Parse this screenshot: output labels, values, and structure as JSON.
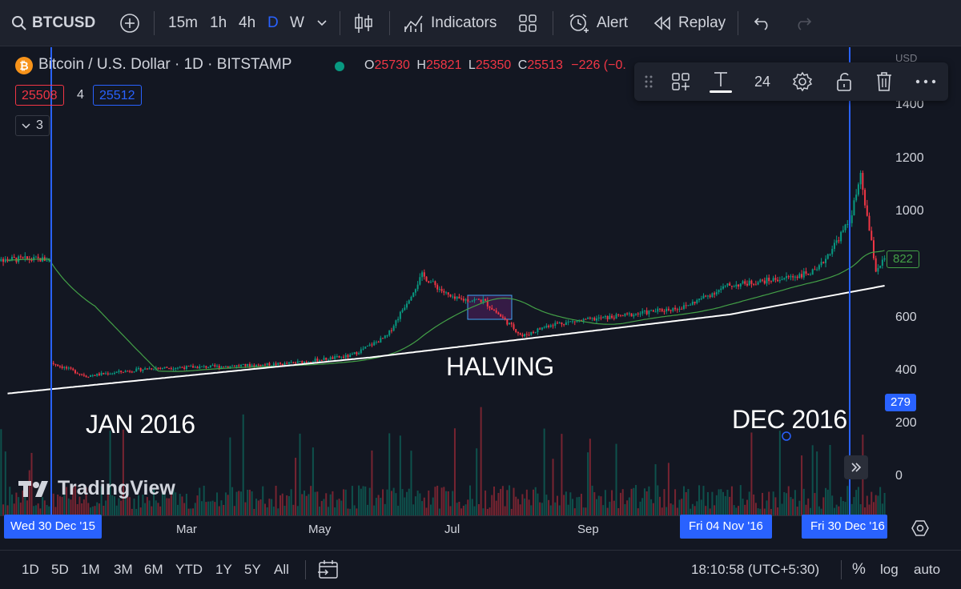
{
  "toolbar": {
    "symbol": "BTCUSD",
    "intervals": [
      "15m",
      "1h",
      "4h",
      "D",
      "W"
    ],
    "indicators": "Indicators",
    "alert": "Alert",
    "replay": "Replay"
  },
  "legend": {
    "title": "Bitcoin / U.S. Dollar · 1D · BITSTAMP",
    "o_label": "O",
    "o": "25730",
    "h_label": "H",
    "h": "25821",
    "l_label": "L",
    "l": "25350",
    "c_label": "C",
    "c": "25513",
    "change": "−226 (−0.",
    "bid": "25508",
    "spread": "4",
    "ask": "25512",
    "indicators_collapsed": "3"
  },
  "drawing_toolbar": {
    "font_size": "24"
  },
  "price_axis": {
    "unit": "USD",
    "ticks": [
      "1400",
      "1200",
      "1000",
      "800",
      "600",
      "400",
      "200",
      "0"
    ],
    "last_ma": "822",
    "volume_badge": "279"
  },
  "time_axis": {
    "labels": [
      "Mar",
      "May",
      "Jul",
      "Sep"
    ],
    "cursor_start": "Wed 30 Dec '15",
    "cursor_mid": "Fri 04 Nov '16",
    "cursor_end": "Fri 30 Dec '16"
  },
  "annotations": {
    "halving": "HALVING",
    "jan": "JAN 2016",
    "dec": "DEC 2016"
  },
  "watermark": "TradingView",
  "bottom": {
    "ranges": [
      "1D",
      "5D",
      "1M",
      "3M",
      "6M",
      "YTD",
      "1Y",
      "5Y",
      "All"
    ],
    "clock": "18:10:58 (UTC+5:30)",
    "percent": "%",
    "log": "log",
    "auto": "auto"
  },
  "colors": {
    "up": "#089981",
    "down": "#f23645",
    "ma_green": "#43a047",
    "ma_white": "#ffffff",
    "cursor_line": "#2962ff",
    "accent_blue": "#2962ff"
  },
  "chart_data": {
    "type": "candlestick",
    "symbol": "BTCUSD",
    "exchange": "BITSTAMP",
    "interval": "1D",
    "price_range": [
      0,
      1450
    ],
    "approx_close_path": [
      {
        "date": "2015-12-30",
        "close": 430
      },
      {
        "date": "2016-01-15",
        "close": 380
      },
      {
        "date": "2016-02-15",
        "close": 410
      },
      {
        "date": "2016-03-15",
        "close": 415
      },
      {
        "date": "2016-04-15",
        "close": 425
      },
      {
        "date": "2016-05-15",
        "close": 455
      },
      {
        "date": "2016-06-01",
        "close": 530
      },
      {
        "date": "2016-06-17",
        "close": 760
      },
      {
        "date": "2016-07-01",
        "close": 670
      },
      {
        "date": "2016-07-15",
        "close": 665
      },
      {
        "date": "2016-08-02",
        "close": 530
      },
      {
        "date": "2016-08-15",
        "close": 575
      },
      {
        "date": "2016-09-15",
        "close": 605
      },
      {
        "date": "2016-10-15",
        "close": 640
      },
      {
        "date": "2016-11-04",
        "close": 720
      },
      {
        "date": "2016-12-01",
        "close": 750
      },
      {
        "date": "2016-12-15",
        "close": 775
      },
      {
        "date": "2016-12-30",
        "close": 965
      },
      {
        "date": "2017-01-04",
        "close": 1130
      },
      {
        "date": "2017-01-11",
        "close": 780
      },
      {
        "date": "2017-01-15",
        "close": 820
      }
    ]
  }
}
